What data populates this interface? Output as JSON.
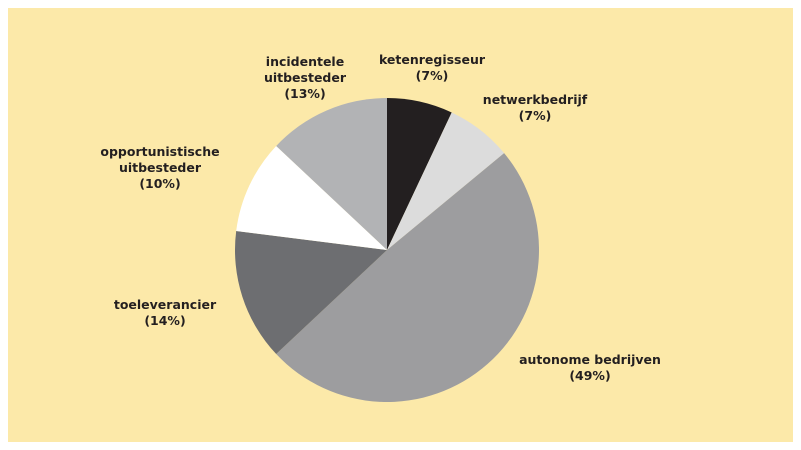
{
  "chart_data": {
    "type": "pie",
    "categories": [
      "ketenregisseur",
      "netwerkbedrijf",
      "autonome bedrijven",
      "toeleverancier",
      "opportunistische uitbesteder",
      "incidentele uitbesteder"
    ],
    "values": [
      7,
      7,
      49,
      14,
      10,
      13
    ],
    "value_labels": [
      "(7%)",
      "(7%)",
      "(49%)",
      "(14%)",
      "(10%)",
      "(13%)"
    ],
    "colors": [
      "#231f20",
      "#dcdcdc",
      "#9d9d9f",
      "#6d6e71",
      "#ffffff",
      "#b2b3b5"
    ]
  }
}
